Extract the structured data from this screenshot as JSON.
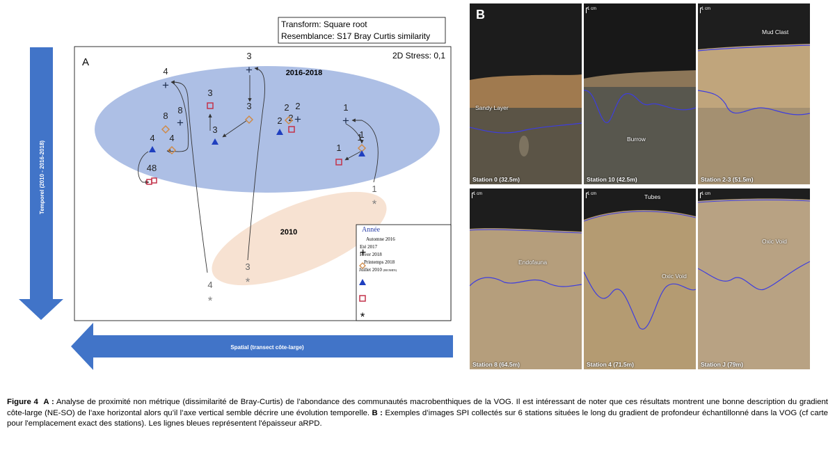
{
  "figure_a": {
    "panel_letter": "A",
    "transform_line": "Transform: Square root",
    "resemblance_line": "Resemblance: S17 Bray Curtis similarity",
    "stress": "2D Stress: 0,1",
    "group_2016_2018": "2016-2018",
    "group_2010": "2010",
    "vertical_axis_label": "Temporel (2010 - 2016-2018)",
    "horizontal_axis_label": "Spatial (transect côte-large)",
    "legend": {
      "title": "Année",
      "items": [
        "Automne 2016",
        "Eté 2017",
        "Hiver 2018",
        "Printemps 2018",
        "Juillet 2010"
      ],
      "last_item_suffix": "(BIOMIN)"
    },
    "colors": {
      "ellipse_recent": "#9fb4e0",
      "ellipse_2010": "#f7e2d2",
      "arrow_blue": "#4174c8",
      "triangle": "#1f3fbf",
      "square": "#c3324a",
      "diamond": "#cf8a48",
      "asterisk": "#7f7f7f"
    },
    "points": [
      {
        "label": "4",
        "marker": "plus"
      },
      {
        "label": "3",
        "marker": "plus"
      },
      {
        "label": "8",
        "marker": "plus"
      },
      {
        "label": "2",
        "marker": "plus"
      },
      {
        "label": "1",
        "marker": "plus"
      },
      {
        "label": "3",
        "marker": "square"
      },
      {
        "label": "2",
        "marker": "square"
      },
      {
        "label": "1",
        "marker": "square"
      },
      {
        "label": "48",
        "marker": "square"
      },
      {
        "label": "8",
        "marker": "diamond"
      },
      {
        "label": "4",
        "marker": "diamond"
      },
      {
        "label": "3",
        "marker": "diamond"
      },
      {
        "label": "2",
        "marker": "diamond"
      },
      {
        "label": "1",
        "marker": "diamond"
      },
      {
        "label": "4",
        "marker": "triangle"
      },
      {
        "label": "3",
        "marker": "triangle"
      },
      {
        "label": "2",
        "marker": "triangle"
      },
      {
        "label": "1",
        "marker": "triangle"
      },
      {
        "label": "1",
        "marker": "asterisk"
      },
      {
        "label": "3",
        "marker": "asterisk"
      },
      {
        "label": "4",
        "marker": "asterisk"
      }
    ]
  },
  "figure_b": {
    "panel_letter": "B",
    "scale_label": "1 cm",
    "panels": [
      {
        "station": "Station 0 (32.5m)",
        "annotations": [
          "Sandy Layer"
        ]
      },
      {
        "station": "Station 10 (42.5m)",
        "annotations": [
          "Burrow"
        ]
      },
      {
        "station": "Station 2-3 (51.5m)",
        "annotations": [
          "Mud Clast"
        ]
      },
      {
        "station": "Station 8 (64.5m)",
        "annotations": [
          "Endofauna"
        ]
      },
      {
        "station": "Station 4 (71.5m)",
        "annotations": [
          "Tubes",
          "Oxic Void"
        ]
      },
      {
        "station": "Station J (79m)",
        "annotations": [
          "Oxic Void"
        ]
      }
    ]
  },
  "caption": {
    "fig_label": "Figure 4",
    "a_label": "A :",
    "a_text": "Analyse de proximité non métrique (dissimilarité de Bray-Curtis) de l’abondance des communautés macrobenthiques de la VOG. Il est intéressant de noter que ces résultats montrent une bonne description du gradient côte-large (NE-SO) de l’axe horizontal alors qu’il l’axe vertical semble décrire une évolution temporelle.",
    "b_label": "B :",
    "b_text": "Exemples d’images SPI collectés sur 6 stations situées le long du gradient de profondeur échantillonné dans la VOG (cf carte pour l'emplacement exact des stations). Les lignes bleues représentent l'épaisseur aRPD."
  }
}
